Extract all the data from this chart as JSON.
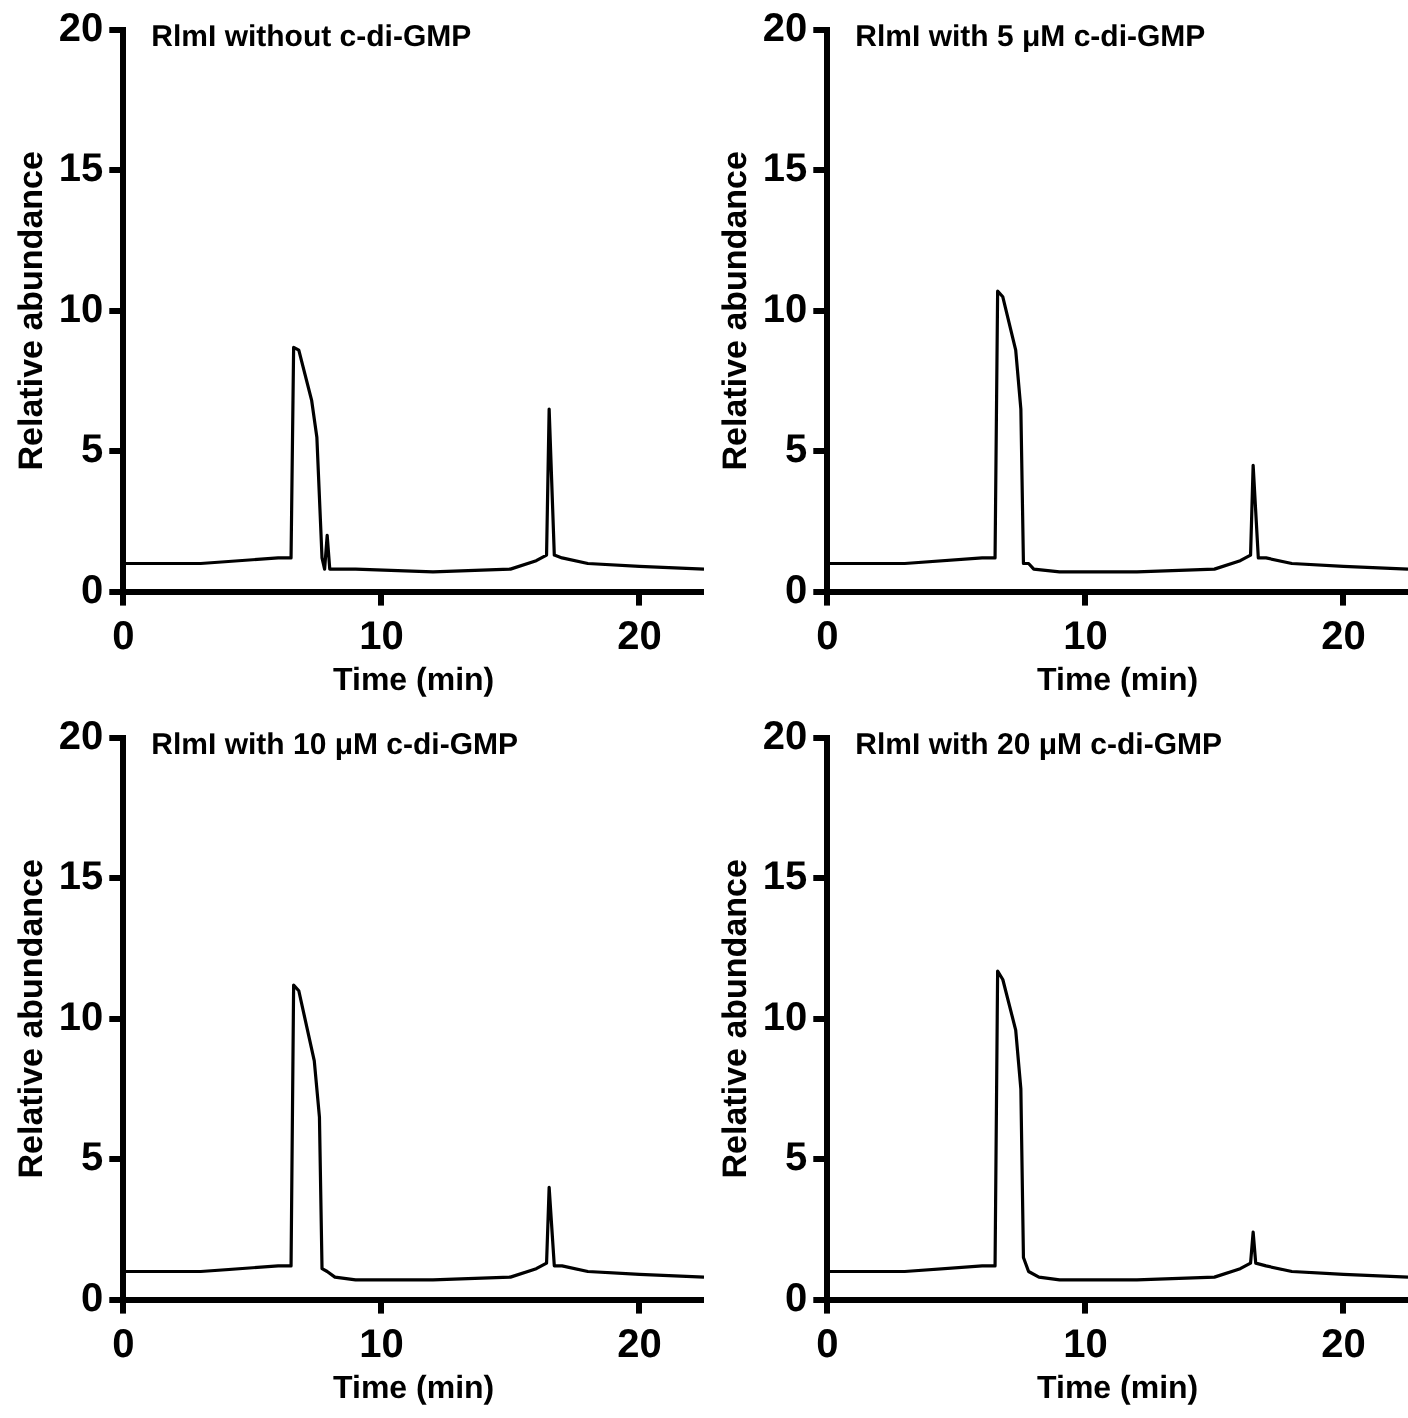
{
  "chart_data": [
    {
      "type": "line",
      "title": "RlmI without c-di-GMP",
      "xlabel": "Time (min)",
      "ylabel": "Relative abundance",
      "xlim": [
        0,
        22.5
      ],
      "ylim": [
        0,
        20
      ],
      "xticks": [
        0,
        10,
        20
      ],
      "yticks": [
        0,
        5,
        10,
        15,
        20
      ],
      "marker": "none",
      "color": "#000000",
      "x": [
        0,
        3,
        6,
        6.5,
        6.6,
        6.8,
        7.3,
        7.5,
        7.7,
        7.8,
        7.9,
        8.0,
        9,
        12,
        15,
        16,
        16.4,
        16.5,
        16.7,
        17,
        18,
        20,
        22.5
      ],
      "values": [
        1.0,
        1.0,
        1.2,
        1.2,
        8.7,
        8.6,
        6.8,
        5.5,
        1.2,
        0.8,
        2.0,
        0.8,
        0.8,
        0.7,
        0.8,
        1.1,
        1.3,
        6.5,
        1.3,
        1.2,
        1.0,
        0.9,
        0.8
      ]
    },
    {
      "type": "line",
      "title": "RlmI with 5 μM c-di-GMP",
      "xlabel": "Time (min)",
      "ylabel": "Relative abundance",
      "xlim": [
        0,
        22.5
      ],
      "ylim": [
        0,
        20
      ],
      "xticks": [
        0,
        10,
        20
      ],
      "yticks": [
        0,
        5,
        10,
        15,
        20
      ],
      "marker": "none",
      "color": "#000000",
      "x": [
        0,
        3,
        6,
        6.5,
        6.6,
        6.8,
        7.3,
        7.5,
        7.6,
        7.8,
        8.0,
        9,
        12,
        15,
        16,
        16.4,
        16.5,
        16.7,
        17,
        18,
        20,
        22.5
      ],
      "values": [
        1.0,
        1.0,
        1.2,
        1.2,
        10.7,
        10.5,
        8.6,
        6.5,
        1.0,
        1.0,
        0.8,
        0.7,
        0.7,
        0.8,
        1.1,
        1.3,
        4.5,
        1.2,
        1.2,
        1.0,
        0.9,
        0.8
      ]
    },
    {
      "type": "line",
      "title": "RlmI with 10 μM c-di-GMP",
      "xlabel": "Time (min)",
      "ylabel": "Relative abundance",
      "xlim": [
        0,
        22.5
      ],
      "ylim": [
        0,
        20
      ],
      "xticks": [
        0,
        10,
        20
      ],
      "yticks": [
        0,
        5,
        10,
        15,
        20
      ],
      "marker": "none",
      "color": "#000000",
      "x": [
        0,
        3,
        6,
        6.5,
        6.6,
        6.8,
        7.4,
        7.6,
        7.7,
        7.9,
        8.2,
        9,
        12,
        15,
        16,
        16.4,
        16.5,
        16.7,
        17,
        18,
        20,
        22.5
      ],
      "values": [
        1.0,
        1.0,
        1.2,
        1.2,
        11.2,
        11.0,
        8.5,
        6.5,
        1.1,
        1.0,
        0.8,
        0.7,
        0.7,
        0.8,
        1.1,
        1.3,
        4.0,
        1.2,
        1.2,
        1.0,
        0.9,
        0.8
      ]
    },
    {
      "type": "line",
      "title": "RlmI with 20 μM c-di-GMP",
      "xlabel": "Time (min)",
      "ylabel": "Relative abundance",
      "xlim": [
        0,
        22.5
      ],
      "ylim": [
        0,
        20
      ],
      "xticks": [
        0,
        10,
        20
      ],
      "yticks": [
        0,
        5,
        10,
        15,
        20
      ],
      "marker": "none",
      "color": "#000000",
      "x": [
        0,
        3,
        6,
        6.5,
        6.6,
        6.8,
        7.3,
        7.5,
        7.6,
        7.8,
        8.2,
        9,
        12,
        15,
        16,
        16.4,
        16.5,
        16.6,
        17,
        18,
        20,
        22.5
      ],
      "values": [
        1.0,
        1.0,
        1.2,
        1.2,
        11.7,
        11.4,
        9.6,
        7.5,
        1.5,
        1.0,
        0.8,
        0.7,
        0.7,
        0.8,
        1.1,
        1.3,
        2.4,
        1.3,
        1.2,
        1.0,
        0.9,
        0.8
      ]
    }
  ]
}
